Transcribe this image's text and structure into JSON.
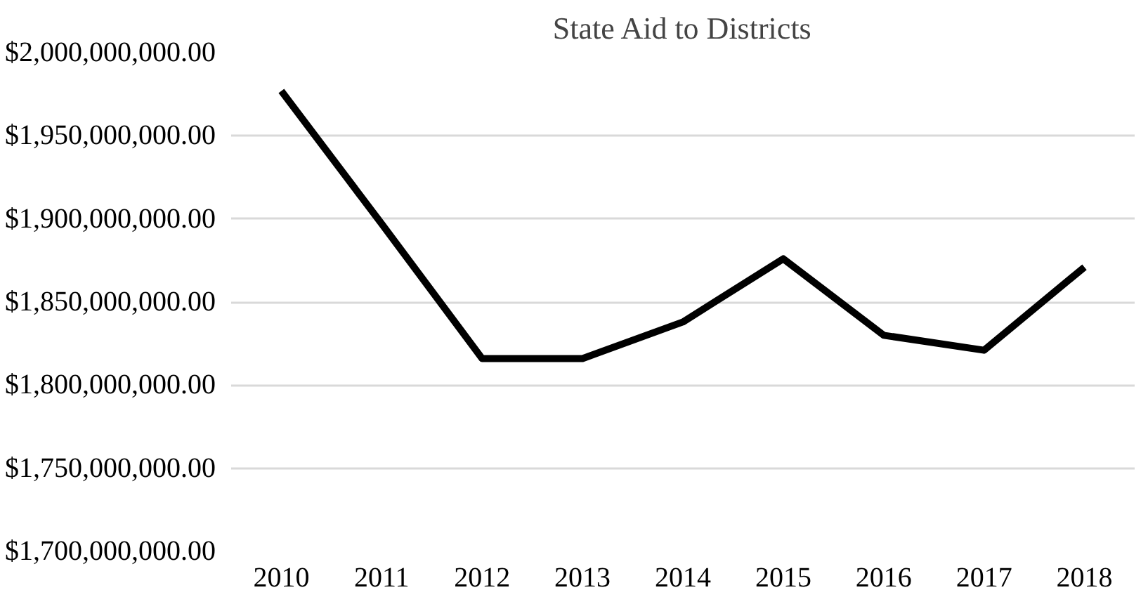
{
  "chart_data": {
    "type": "line",
    "title": "State Aid to Districts",
    "categories": [
      "2010",
      "2011",
      "2012",
      "2013",
      "2014",
      "2015",
      "2016",
      "2017",
      "2018"
    ],
    "series": [
      {
        "color": "#000000",
        "values": [
          1977000000,
          1897000000,
          1816000000,
          1816000000,
          1838000000,
          1876000000,
          1830000000,
          1821000000,
          1871000000
        ]
      }
    ],
    "ylim": [
      1700000000,
      2000000000
    ],
    "yticks": [
      {
        "value": 1700000000,
        "label": "$1,700,000,000.00"
      },
      {
        "value": 1750000000,
        "label": "$1,750,000,000.00"
      },
      {
        "value": 1800000000,
        "label": "$1,800,000,000.00"
      },
      {
        "value": 1850000000,
        "label": "$1,850,000,000.00"
      },
      {
        "value": 1900000000,
        "label": "$1,900,000,000.00"
      },
      {
        "value": 1950000000,
        "label": "$1,950,000,000.00"
      },
      {
        "value": 2000000000,
        "label": "$2,000,000,000.00"
      }
    ],
    "grid": "y",
    "marker": "none",
    "line_style": "solid"
  }
}
